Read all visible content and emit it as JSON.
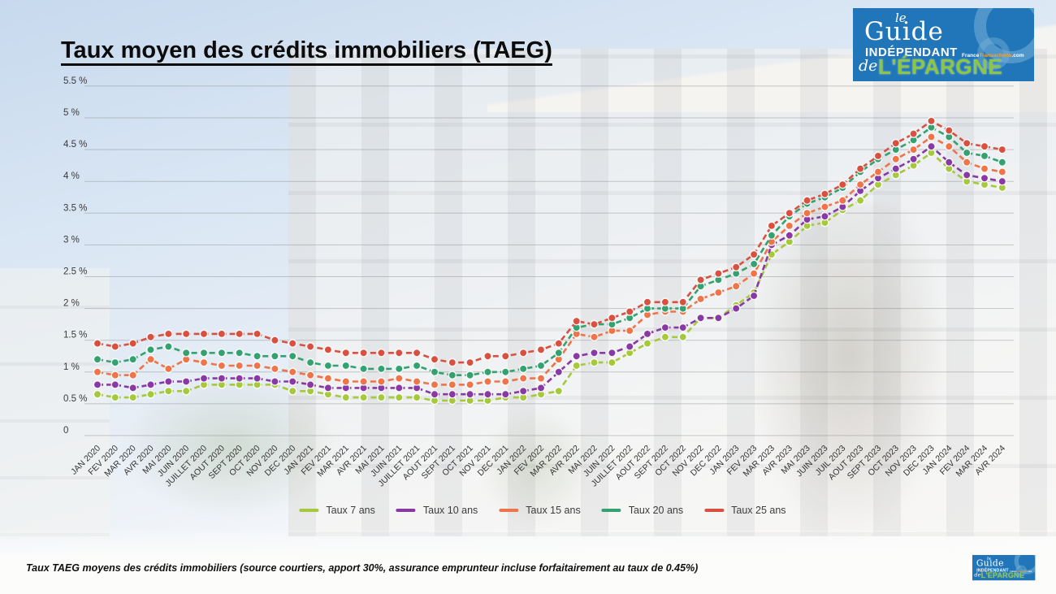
{
  "header": {
    "title": "Taux moyen des crédits immobiliers (TAEG)"
  },
  "logo": {
    "le": "le",
    "guide": "Guide",
    "independant": "INDÉPENDANT",
    "site1": "France",
    "site2": "Transactions",
    "site3": ".com",
    "de": "de",
    "epargne": "L'ÉPARGNE"
  },
  "footer": {
    "note": "Taux TAEG moyens des crédits immobiliers (source courtiers, apport 30%, assurance emprunteur incluse forfaitairement au taux de 0.45%)"
  },
  "chart_data": {
    "type": "line",
    "title": "Taux moyen des crédits immobiliers (TAEG)",
    "unit": "%",
    "grid": true,
    "legend_position": "bottom",
    "line_style": "dashed-with-dots",
    "ylim": [
      0,
      5.5
    ],
    "y_ticks": [
      "0",
      "0.5 %",
      "1 %",
      "1.5 %",
      "2 %",
      "2.5 %",
      "3 %",
      "3.5 %",
      "4 %",
      "4.5 %",
      "5 %",
      "5.5 %"
    ],
    "x_labels": [
      "JAN 2020",
      "FEV 2020",
      "MAR 2020",
      "AVR 2020",
      "MAI 2020",
      "JUIN 2020",
      "JUILLET 2020",
      "AOUT 2020",
      "SEPT 2020",
      "OCT 2020",
      "NOV 2020",
      "DEC 2020",
      "JAN 2021",
      "FEV 2021",
      "MAR 2021",
      "AVR 2021",
      "MAI 2021",
      "JUIN 2021",
      "JUILLET 2021",
      "AOUT 2021",
      "SEPT 2021",
      "OCT 2021",
      "NOV 2021",
      "DEC 2021",
      "JAN 2022",
      "FEV 2022",
      "MAR 2022",
      "AVR 2022",
      "MAI 2022",
      "JUIN 2022",
      "JUILLET 2022",
      "AOUT 2022",
      "SEPT 2022",
      "OCT 2022",
      "NOV 2022",
      "DEC 2022",
      "JAN 2023",
      "FEV 2023",
      "MAR 2023",
      "AVR 2023",
      "MAI 2023",
      "JUIN 2023",
      "JUIL 2023",
      "AOUT 2023",
      "SEPT 2023",
      "OCT 2023",
      "NOV 2023",
      "DEC 2023",
      "JAN 2024",
      "FEV 2024",
      "MAR 2024",
      "AVR 2024"
    ],
    "series": [
      {
        "name": "Taux 7 ans",
        "color": "#a6c83d",
        "values": [
          0.65,
          0.6,
          0.6,
          0.65,
          0.7,
          0.7,
          0.8,
          0.8,
          0.8,
          0.8,
          0.8,
          0.7,
          0.7,
          0.65,
          0.6,
          0.6,
          0.6,
          0.6,
          0.6,
          0.55,
          0.55,
          0.55,
          0.55,
          0.6,
          0.6,
          0.65,
          0.7,
          1.1,
          1.15,
          1.15,
          1.3,
          1.45,
          1.55,
          1.55,
          1.85,
          1.85,
          2.05,
          2.25,
          2.85,
          3.05,
          3.3,
          3.35,
          3.55,
          3.7,
          3.95,
          4.1,
          4.25,
          4.45,
          4.2,
          4.0,
          3.95,
          3.9
        ]
      },
      {
        "name": "Taux 10 ans",
        "color": "#8939a4",
        "values": [
          0.8,
          0.8,
          0.75,
          0.8,
          0.85,
          0.85,
          0.9,
          0.9,
          0.9,
          0.9,
          0.85,
          0.85,
          0.8,
          0.75,
          0.75,
          0.75,
          0.75,
          0.75,
          0.75,
          0.65,
          0.65,
          0.65,
          0.65,
          0.65,
          0.7,
          0.75,
          1.0,
          1.25,
          1.3,
          1.3,
          1.4,
          1.6,
          1.7,
          1.7,
          1.85,
          1.85,
          2.0,
          2.2,
          3.0,
          3.15,
          3.4,
          3.45,
          3.6,
          3.85,
          4.05,
          4.2,
          4.35,
          4.55,
          4.3,
          4.1,
          4.05,
          4.0
        ]
      },
      {
        "name": "Taux 15 ans",
        "color": "#ee744a",
        "values": [
          1.0,
          0.95,
          0.95,
          1.2,
          1.05,
          1.2,
          1.15,
          1.1,
          1.1,
          1.1,
          1.05,
          1.0,
          0.95,
          0.9,
          0.85,
          0.85,
          0.85,
          0.9,
          0.85,
          0.8,
          0.8,
          0.8,
          0.85,
          0.85,
          0.9,
          0.9,
          1.2,
          1.6,
          1.55,
          1.65,
          1.65,
          1.9,
          1.95,
          1.95,
          2.15,
          2.25,
          2.35,
          2.55,
          3.05,
          3.3,
          3.5,
          3.6,
          3.7,
          3.95,
          4.15,
          4.35,
          4.5,
          4.7,
          4.55,
          4.3,
          4.2,
          4.15
        ]
      },
      {
        "name": "Taux 20 ans",
        "color": "#34a170",
        "values": [
          1.2,
          1.15,
          1.2,
          1.35,
          1.4,
          1.3,
          1.3,
          1.3,
          1.3,
          1.25,
          1.25,
          1.25,
          1.15,
          1.1,
          1.1,
          1.05,
          1.05,
          1.05,
          1.1,
          1.0,
          0.95,
          0.95,
          1.0,
          1.0,
          1.05,
          1.1,
          1.3,
          1.7,
          1.75,
          1.75,
          1.85,
          2.0,
          2.0,
          2.0,
          2.35,
          2.45,
          2.55,
          2.7,
          3.15,
          3.45,
          3.65,
          3.75,
          3.9,
          4.15,
          4.35,
          4.5,
          4.65,
          4.85,
          4.7,
          4.45,
          4.4,
          4.3
        ]
      },
      {
        "name": "Taux 25 ans",
        "color": "#d85140",
        "values": [
          1.45,
          1.4,
          1.45,
          1.55,
          1.6,
          1.6,
          1.6,
          1.6,
          1.6,
          1.6,
          1.5,
          1.45,
          1.4,
          1.35,
          1.3,
          1.3,
          1.3,
          1.3,
          1.3,
          1.2,
          1.15,
          1.15,
          1.25,
          1.25,
          1.3,
          1.35,
          1.45,
          1.8,
          1.75,
          1.85,
          1.95,
          2.1,
          2.1,
          2.1,
          2.45,
          2.55,
          2.65,
          2.85,
          3.3,
          3.5,
          3.7,
          3.8,
          3.95,
          4.2,
          4.4,
          4.6,
          4.75,
          4.95,
          4.8,
          4.6,
          4.55,
          4.5
        ]
      }
    ]
  }
}
